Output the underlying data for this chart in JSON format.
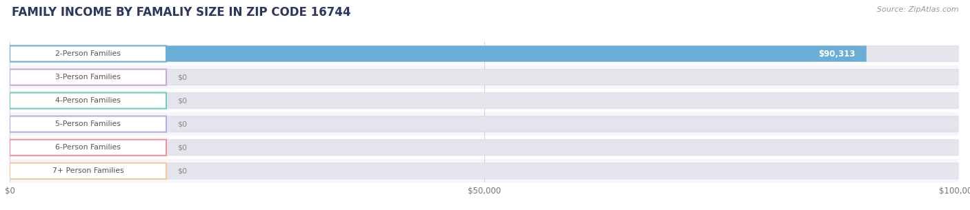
{
  "title": "FAMILY INCOME BY FAMALIY SIZE IN ZIP CODE 16744",
  "source": "Source: ZipAtlas.com",
  "categories": [
    "2-Person Families",
    "3-Person Families",
    "4-Person Families",
    "5-Person Families",
    "6-Person Families",
    "7+ Person Families"
  ],
  "values": [
    90313,
    0,
    0,
    0,
    0,
    0
  ],
  "bar_colors": [
    "#6aaed6",
    "#c4a8d4",
    "#6ecfbe",
    "#b3b3e0",
    "#f4919b",
    "#f5c999"
  ],
  "xlim": [
    0,
    100000
  ],
  "xticks": [
    0,
    50000,
    100000
  ],
  "xtick_labels": [
    "$0",
    "$50,000",
    "$100,000"
  ],
  "value_labels": [
    "$90,313",
    "$0",
    "$0",
    "$0",
    "$0",
    "$0"
  ],
  "background_color": "#ffffff",
  "bar_bg_color": "#e4e4ec",
  "bar_bg_edge_color": "#d8d8e4",
  "row_colors": [
    "#ffffff",
    "#f5f5fa"
  ],
  "title_color": "#2d3561",
  "title_fontsize": 12,
  "source_fontsize": 8,
  "source_color": "#999999",
  "label_text_color": "#555555",
  "value_color_on_bar": "#ffffff",
  "value_color_off_bar": "#888888"
}
